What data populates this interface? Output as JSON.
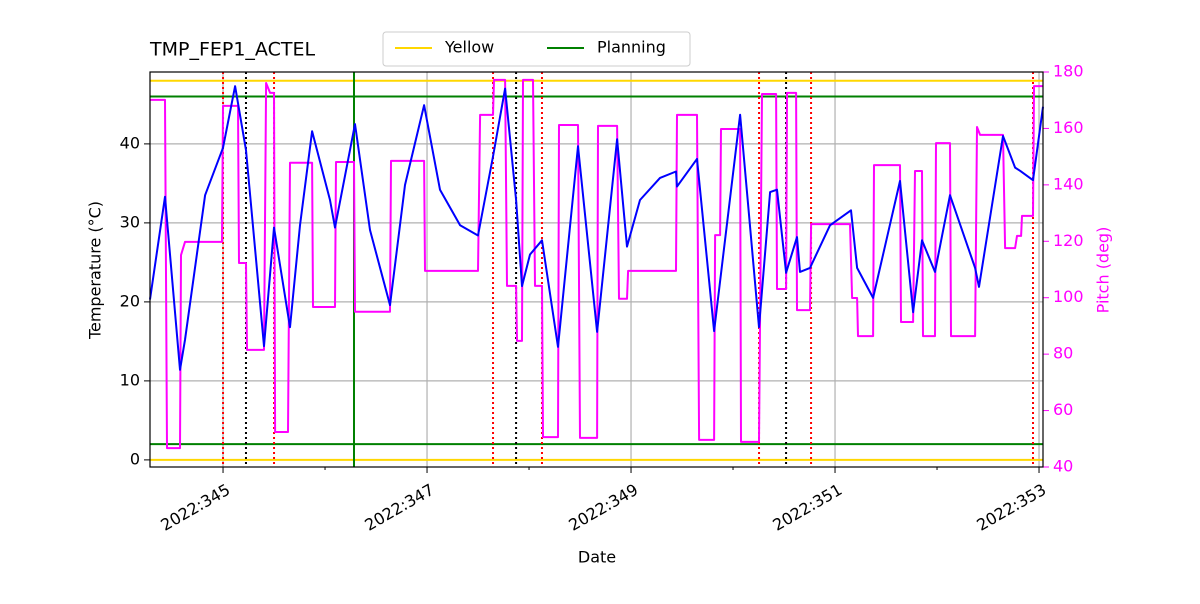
{
  "chart_data": {
    "type": "line",
    "title": "TMP_FEP1_ACTEL",
    "xlabel": "Date",
    "ylabel": "Temperature (°C)",
    "y2label": "Pitch (deg)",
    "y2color": "magenta",
    "grid": true,
    "xlim": [
      344.284,
      353.039
    ],
    "ylim": [
      -0.9,
      49.1
    ],
    "y2lim": [
      40,
      180
    ],
    "xticks": [
      {
        "value": 345,
        "label": "2022:345"
      },
      {
        "value": 347,
        "label": "2022:347"
      },
      {
        "value": 349,
        "label": "2022:349"
      },
      {
        "value": 351,
        "label": "2022:351"
      },
      {
        "value": 353,
        "label": "2022:353"
      }
    ],
    "xminorticks": [
      346,
      348,
      350,
      352
    ],
    "yticks": [
      0,
      10,
      20,
      30,
      40
    ],
    "y2ticks": [
      40,
      60,
      80,
      100,
      120,
      140,
      160,
      180
    ],
    "limit_lines": [
      {
        "name": "Yellow",
        "color": "gold",
        "values": [
          0,
          48
        ]
      },
      {
        "name": "Planning",
        "color": "green",
        "values": [
          2,
          46
        ]
      }
    ],
    "vlines": [
      {
        "color": "green",
        "style": "solid",
        "x": [
          346.284
        ]
      },
      {
        "color": "red",
        "style": "dotted",
        "x": [
          345.0,
          345.5,
          347.647,
          348.127,
          350.255,
          350.765,
          352.941
        ]
      },
      {
        "color": "black",
        "style": "dotted",
        "x": [
          345.225,
          347.873,
          350.52
        ]
      }
    ],
    "series": [
      {
        "color": "magenta",
        "axis": "y2",
        "x": [
          344.284,
          344.431,
          344.451,
          344.578,
          344.588,
          344.627,
          344.99,
          345.0,
          345.147,
          345.157,
          345.225,
          345.235,
          345.402,
          345.422,
          345.461,
          345.5,
          345.51,
          345.637,
          345.657,
          345.873,
          345.882,
          346.098,
          346.108,
          346.284,
          346.294,
          346.637,
          346.647,
          346.971,
          346.98,
          347.5,
          347.52,
          347.647,
          347.657,
          347.765,
          347.784,
          347.873,
          347.882,
          347.931,
          347.941,
          348.039,
          348.059,
          348.127,
          348.137,
          348.284,
          348.294,
          348.48,
          348.5,
          348.667,
          348.676,
          348.863,
          348.882,
          348.961,
          348.971,
          349.441,
          349.451,
          349.647,
          349.667,
          349.814,
          349.824,
          349.873,
          349.882,
          350.069,
          350.078,
          350.255,
          350.284,
          350.422,
          350.431,
          350.52,
          350.529,
          350.618,
          350.627,
          350.755,
          350.765,
          351.147,
          351.167,
          351.216,
          351.225,
          351.373,
          351.382,
          351.637,
          351.647,
          351.765,
          351.784,
          351.853,
          351.863,
          351.98,
          351.99,
          352.127,
          352.137,
          352.373,
          352.392,
          352.422,
          352.647,
          352.667,
          352.765,
          352.784,
          352.824,
          352.833,
          352.941,
          352.951,
          353.039
        ],
        "values": [
          170.1,
          170.1,
          46.7,
          46.7,
          115.1,
          119.8,
          119.8,
          168.0,
          168.0,
          112.3,
          112.3,
          81.5,
          81.5,
          176.1,
          172.6,
          172.6,
          52.4,
          52.4,
          147.8,
          147.8,
          96.7,
          96.7,
          148.1,
          148.1,
          95.0,
          95.0,
          148.5,
          148.5,
          109.5,
          109.5,
          164.8,
          164.8,
          177.2,
          177.2,
          104.2,
          104.2,
          84.7,
          84.7,
          177.2,
          177.2,
          104.2,
          104.2,
          50.6,
          50.6,
          161.2,
          161.2,
          50.3,
          50.3,
          160.9,
          160.9,
          99.6,
          99.6,
          109.5,
          109.5,
          164.8,
          164.8,
          49.6,
          49.6,
          122.2,
          122.2,
          159.8,
          159.8,
          48.9,
          48.9,
          172.2,
          172.2,
          103.1,
          103.1,
          172.6,
          172.6,
          95.6,
          95.6,
          126.1,
          126.1,
          99.9,
          99.9,
          86.4,
          86.4,
          147.0,
          147.0,
          91.4,
          91.4,
          144.9,
          144.9,
          86.4,
          86.4,
          154.8,
          154.8,
          86.4,
          86.4,
          160.5,
          157.7,
          157.7,
          117.6,
          117.6,
          121.9,
          121.9,
          129.0,
          129.0,
          175.0,
          175.0
        ]
      },
      {
        "color": "blue",
        "x": [
          344.284,
          344.431,
          344.578,
          344.627,
          344.824,
          345.0,
          345.118,
          345.225,
          345.402,
          345.5,
          345.657,
          345.755,
          345.873,
          346.049,
          346.098,
          346.294,
          346.441,
          346.637,
          346.784,
          346.971,
          347.127,
          347.324,
          347.5,
          347.647,
          347.765,
          347.873,
          347.931,
          348.01,
          348.127,
          348.284,
          348.48,
          348.667,
          348.863,
          348.961,
          349.088,
          349.284,
          349.441,
          349.451,
          349.647,
          349.814,
          350.069,
          350.255,
          350.363,
          350.431,
          350.52,
          350.627,
          350.657,
          350.755,
          350.951,
          351.157,
          351.216,
          351.373,
          351.637,
          351.765,
          351.853,
          351.98,
          352.127,
          352.373,
          352.412,
          352.647,
          352.765,
          352.814,
          352.941,
          353.039
        ],
        "values": [
          20.3,
          33.3,
          11.4,
          15.2,
          33.5,
          39.5,
          47.3,
          39.2,
          14.4,
          29.4,
          16.8,
          29.7,
          41.6,
          32.9,
          29.4,
          42.5,
          29.1,
          19.6,
          34.8,
          44.9,
          34.2,
          29.7,
          28.4,
          38.4,
          47.0,
          32.9,
          22.0,
          26.0,
          27.8,
          14.3,
          39.7,
          16.2,
          40.6,
          27.0,
          32.9,
          35.7,
          36.5,
          34.6,
          38.1,
          16.3,
          43.7,
          16.8,
          33.9,
          34.2,
          23.7,
          28.2,
          23.8,
          24.3,
          29.7,
          31.6,
          24.3,
          20.5,
          35.3,
          18.7,
          27.8,
          23.8,
          33.5,
          24.3,
          21.9,
          41.0,
          37.0,
          36.6,
          35.4,
          44.7
        ]
      }
    ]
  }
}
